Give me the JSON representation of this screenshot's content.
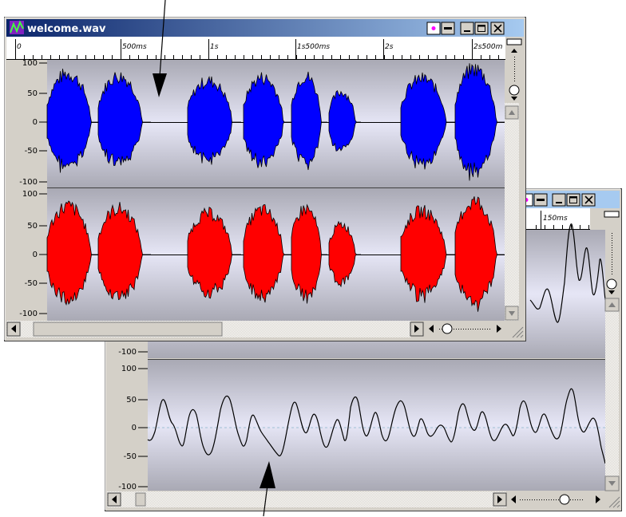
{
  "front_window": {
    "title": "welcome.wav",
    "ruler_labels": [
      "0",
      "500ms",
      "1s",
      "1s500ms",
      "2s",
      "2s500m"
    ],
    "channel1": {
      "ticks": [
        "100",
        "50",
        "0",
        "-50",
        "-100"
      ],
      "color": "#0000ff"
    },
    "channel2": {
      "ticks": [
        "100",
        "50",
        "0",
        "-50",
        "-100"
      ],
      "color": "#ff0000"
    },
    "controls": {
      "dot_icon": "dot-icon",
      "minus_icon": "minus-icon",
      "minimize": "minimize-icon",
      "maximize": "maximize-icon",
      "close": "close-icon"
    }
  },
  "back_window": {
    "ruler_labels": [
      "150ms"
    ],
    "channel1": {
      "ticks": [
        "-100"
      ]
    },
    "channel2": {
      "ticks": [
        "100",
        "50",
        "0",
        "-50",
        "-100"
      ]
    }
  },
  "colors": {
    "titlebar_start": "#0a246a",
    "titlebar_end": "#a6caf0",
    "plot_bg": "#cfcfe9",
    "chrome": "#d4d0c8"
  }
}
